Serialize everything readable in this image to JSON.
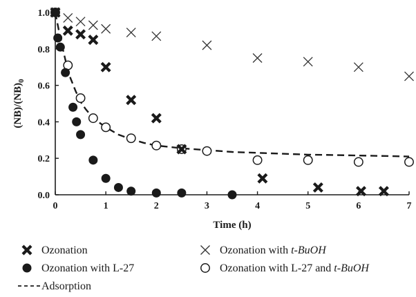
{
  "chart_data": {
    "type": "scatter",
    "xlabel": "Time (h)",
    "ylabel": "(NB)/(NB)0",
    "xlim": [
      0,
      7
    ],
    "ylim": [
      0,
      1.0
    ],
    "xticks": [
      "0",
      "1",
      "2",
      "3",
      "4",
      "5",
      "6",
      "7"
    ],
    "yticks": [
      "0.0",
      "0.2",
      "0.4",
      "0.6",
      "0.8",
      "1.0"
    ],
    "grid": false,
    "series": [
      {
        "name": "Ozonation",
        "marker": "bold-x",
        "color": "#1a1a1a",
        "x": [
          0,
          0.25,
          0.5,
          0.75,
          1.0,
          1.5,
          2.0,
          2.5,
          4.1,
          5.2,
          6.05,
          6.5
        ],
        "y": [
          1.0,
          0.9,
          0.88,
          0.85,
          0.7,
          0.52,
          0.42,
          0.25,
          0.09,
          0.04,
          0.02,
          0.02
        ]
      },
      {
        "name": "Ozonation with t-BuOH",
        "marker": "thin-x",
        "color": "#333333",
        "x": [
          0,
          0.25,
          0.5,
          0.75,
          1.0,
          1.5,
          2.0,
          3.0,
          4.0,
          5.0,
          6.0,
          7.0
        ],
        "y": [
          1.0,
          0.97,
          0.95,
          0.93,
          0.91,
          0.89,
          0.87,
          0.82,
          0.75,
          0.73,
          0.7,
          0.65
        ]
      },
      {
        "name": "Ozonation with L-27",
        "marker": "filled-circle",
        "color": "#1a1a1a",
        "x": [
          0,
          0.05,
          0.1,
          0.2,
          0.35,
          0.42,
          0.5,
          0.75,
          1.0,
          1.25,
          1.5,
          2.0,
          2.5,
          3.5
        ],
        "y": [
          1.0,
          0.86,
          0.81,
          0.67,
          0.48,
          0.4,
          0.33,
          0.19,
          0.09,
          0.04,
          0.02,
          0.01,
          0.01,
          0.0
        ]
      },
      {
        "name": "Ozonation with L-27 and t-BuOH",
        "marker": "open-circle",
        "color": "#1a1a1a",
        "x": [
          0,
          0.25,
          0.5,
          0.75,
          1.0,
          1.5,
          2.0,
          2.5,
          3.0,
          4.0,
          5.0,
          6.0,
          7.0
        ],
        "y": [
          1.0,
          0.71,
          0.53,
          0.42,
          0.37,
          0.31,
          0.27,
          0.25,
          0.24,
          0.19,
          0.19,
          0.18,
          0.18
        ]
      }
    ],
    "adsorption_curve": {
      "name": "Adsorption",
      "style": "dashed",
      "x": [
        0,
        0.1,
        0.2,
        0.3,
        0.4,
        0.5,
        0.6,
        0.75,
        0.9,
        1.0,
        1.25,
        1.5,
        1.75,
        2.0,
        2.5,
        3.0,
        3.5,
        4.0,
        4.5,
        5.0,
        5.5,
        6.0,
        6.5,
        7.0
      ],
      "y": [
        1.0,
        0.86,
        0.74,
        0.64,
        0.57,
        0.51,
        0.47,
        0.42,
        0.39,
        0.37,
        0.33,
        0.305,
        0.285,
        0.27,
        0.255,
        0.245,
        0.235,
        0.23,
        0.225,
        0.22,
        0.218,
        0.215,
        0.213,
        0.21
      ]
    },
    "legend": {
      "placement": "bottom",
      "entries": [
        {
          "key": "ozonation",
          "marker": "bold-x",
          "text": "Ozonation",
          "italic_part": ""
        },
        {
          "key": "tbuoh",
          "marker": "thin-x",
          "text": "Ozonation with ",
          "italic_part": "t-BuOH"
        },
        {
          "key": "l27",
          "marker": "filled-circle",
          "text": "Ozonation with L-27",
          "italic_part": ""
        },
        {
          "key": "l27tbuoh",
          "marker": "open-circle",
          "text": "Ozonation with L-27 and ",
          "italic_part": "t-BuOH"
        },
        {
          "key": "adsorption",
          "marker": "dash-line",
          "text": "Adsorption",
          "italic_part": ""
        }
      ]
    }
  }
}
